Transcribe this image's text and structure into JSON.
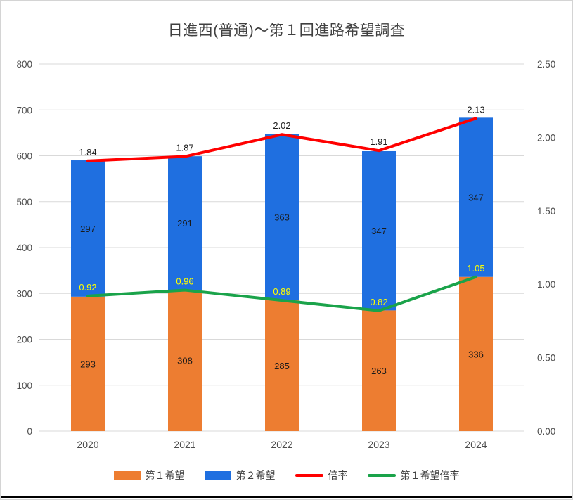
{
  "chart_data": {
    "type": "bar",
    "subtype": "stacked-bars-with-overlay-lines",
    "title": "日進西(普通)～第１回進路希望調査",
    "categories": [
      "2020",
      "2021",
      "2022",
      "2023",
      "2024"
    ],
    "bar_series": [
      {
        "name": "第１希望",
        "color": "#ED7D31",
        "values": [
          293,
          308,
          285,
          263,
          336
        ]
      },
      {
        "name": "第２希望",
        "color": "#1F6FE0",
        "values": [
          297,
          291,
          363,
          347,
          347
        ]
      }
    ],
    "line_series": [
      {
        "name": "倍率",
        "color": "#FF0000",
        "axis": "right",
        "values": [
          1.84,
          1.87,
          2.02,
          1.91,
          2.13
        ],
        "label_color": "#1A1A1A"
      },
      {
        "name": "第１希望倍率",
        "color": "#1AA34A",
        "axis": "right",
        "values": [
          0.92,
          0.96,
          0.89,
          0.82,
          1.05
        ],
        "label_color": "#FFFF00"
      }
    ],
    "left_axis": {
      "min": 0,
      "max": 800,
      "step": 100,
      "ticks": [
        "0",
        "100",
        "200",
        "300",
        "400",
        "500",
        "600",
        "700",
        "800"
      ]
    },
    "right_axis": {
      "min": 0,
      "max": 2.5,
      "step": 0.5,
      "ticks": [
        "0.00",
        "0.50",
        "1.00",
        "1.50",
        "2.00",
        "2.50"
      ]
    },
    "stacked": true,
    "grid": true,
    "legend_position": "bottom",
    "bar_label_color": "#1A1A1A",
    "gridline_color": "#D9D9D9",
    "axis_text_color": "#4D4D4D"
  }
}
